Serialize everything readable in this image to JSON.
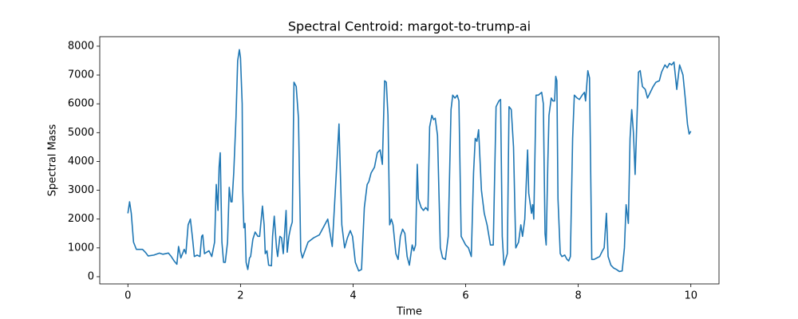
{
  "chart_data": {
    "type": "line",
    "title": "Spectral Centroid: margot-to-trump-ai",
    "xlabel": "Time",
    "ylabel": "Spectral Mass",
    "color": "#1f77b4",
    "xlim": [
      -0.5,
      10.5
    ],
    "ylim": [
      -250,
      8330
    ],
    "xticks": [
      0,
      2,
      4,
      6,
      8,
      10
    ],
    "yticks": [
      0,
      1000,
      2000,
      3000,
      4000,
      5000,
      6000,
      7000,
      8000
    ],
    "x": [
      0,
      0.03,
      0.06,
      0.1,
      0.15,
      0.26,
      0.31,
      0.36,
      0.46,
      0.56,
      0.62,
      0.72,
      0.77,
      0.82,
      0.87,
      0.9,
      0.94,
      1.0,
      1.03,
      1.07,
      1.11,
      1.15,
      1.18,
      1.23,
      1.28,
      1.31,
      1.33,
      1.36,
      1.44,
      1.49,
      1.54,
      1.57,
      1.6,
      1.62,
      1.64,
      1.67,
      1.7,
      1.73,
      1.77,
      1.8,
      1.83,
      1.85,
      1.88,
      1.92,
      1.95,
      1.98,
      2.0,
      2.03,
      2.04,
      2.06,
      2.08,
      2.1,
      2.13,
      2.16,
      2.18,
      2.22,
      2.26,
      2.31,
      2.34,
      2.39,
      2.42,
      2.44,
      2.47,
      2.5,
      2.55,
      2.57,
      2.6,
      2.64,
      2.66,
      2.7,
      2.73,
      2.76,
      2.81,
      2.83,
      2.86,
      2.89,
      2.92,
      2.95,
      2.99,
      3.03,
      3.07,
      3.1,
      3.2,
      3.3,
      3.4,
      3.55,
      3.63,
      3.75,
      3.8,
      3.85,
      3.9,
      3.95,
      3.99,
      4.04,
      4.1,
      4.15,
      4.2,
      4.25,
      4.28,
      4.32,
      4.38,
      4.43,
      4.48,
      4.52,
      4.56,
      4.59,
      4.62,
      4.65,
      4.68,
      4.71,
      4.76,
      4.8,
      4.84,
      4.88,
      4.92,
      4.96,
      5.0,
      5.05,
      5.08,
      5.11,
      5.14,
      5.16,
      5.21,
      5.25,
      5.29,
      5.33,
      5.36,
      5.4,
      5.43,
      5.46,
      5.5,
      5.55,
      5.59,
      5.64,
      5.69,
      5.74,
      5.77,
      5.81,
      5.85,
      5.88,
      5.92,
      5.96,
      6.0,
      6.05,
      6.1,
      6.14,
      6.17,
      6.2,
      6.23,
      6.28,
      6.33,
      6.38,
      6.44,
      6.49,
      6.54,
      6.59,
      6.62,
      6.65,
      6.68,
      6.71,
      6.74,
      6.77,
      6.81,
      6.85,
      6.89,
      6.94,
      6.98,
      7.01,
      7.05,
      7.1,
      7.12,
      7.17,
      7.19,
      7.21,
      7.25,
      7.29,
      7.35,
      7.38,
      7.41,
      7.43,
      7.46,
      7.48,
      7.52,
      7.55,
      7.58,
      7.6,
      7.62,
      7.64,
      7.68,
      7.71,
      7.76,
      7.8,
      7.83,
      7.86,
      7.9,
      7.93,
      7.98,
      8.02,
      8.07,
      8.11,
      8.13,
      8.17,
      8.2,
      8.24,
      8.28,
      8.33,
      8.38,
      8.43,
      8.46,
      8.5,
      8.53,
      8.58,
      8.63,
      8.68,
      8.73,
      8.78,
      8.82,
      8.85,
      8.89,
      8.92,
      8.95,
      8.98,
      9.01,
      9.07,
      9.1,
      9.14,
      9.19,
      9.23,
      9.28,
      9.33,
      9.38,
      9.44,
      9.48,
      9.54,
      9.58,
      9.62,
      9.66,
      9.7,
      9.75,
      9.8,
      9.86,
      9.9,
      9.94,
      9.97,
      10.0
    ],
    "values": [
      2200,
      2600,
      2200,
      1200,
      950,
      950,
      850,
      720,
      750,
      820,
      780,
      820,
      700,
      550,
      430,
      1050,
      650,
      950,
      800,
      1800,
      2000,
      1300,
      700,
      750,
      700,
      1400,
      1450,
      800,
      900,
      700,
      1200,
      3200,
      2300,
      3800,
      4300,
      1200,
      500,
      500,
      1200,
      3100,
      2600,
      2600,
      3600,
      5500,
      7500,
      7880,
      7600,
      6000,
      3000,
      1700,
      1850,
      500,
      250,
      650,
      700,
      1300,
      1550,
      1400,
      1400,
      2450,
      1800,
      800,
      900,
      400,
      380,
      1400,
      2100,
      1000,
      700,
      1400,
      1350,
      800,
      2300,
      850,
      1400,
      1700,
      1900,
      6750,
      6600,
      5500,
      900,
      650,
      1200,
      1350,
      1450,
      2000,
      1050,
      5300,
      1800,
      1000,
      1350,
      1600,
      1400,
      500,
      200,
      250,
      2400,
      3200,
      3300,
      3600,
      3800,
      4300,
      4400,
      3900,
      6800,
      6750,
      5600,
      1800,
      2000,
      1800,
      800,
      600,
      1400,
      1650,
      1500,
      700,
      400,
      1100,
      900,
      1100,
      3900,
      2700,
      2400,
      2300,
      2400,
      2300,
      5200,
      5600,
      5450,
      5500,
      4900,
      1000,
      650,
      600,
      1400,
      5800,
      6300,
      6200,
      6300,
      6100,
      1400,
      1250,
      1100,
      1000,
      700,
      3600,
      4800,
      4700,
      5100,
      3000,
      2200,
      1800,
      1100,
      1100,
      5900,
      6100,
      6150,
      1400,
      400,
      600,
      800,
      5900,
      5800,
      4500,
      1000,
      1200,
      1800,
      1400,
      2000,
      4400,
      2900,
      2200,
      2500,
      2000,
      6300,
      6300,
      6400,
      6000,
      1500,
      1100,
      4000,
      5600,
      6200,
      6100,
      6100,
      6950,
      6800,
      2700,
      800,
      700,
      750,
      600,
      550,
      700,
      4800,
      6300,
      6200,
      6150,
      6300,
      6400,
      6100,
      7150,
      6900,
      600,
      600,
      650,
      700,
      900,
      1000,
      2200,
      700,
      400,
      300,
      250,
      180,
      200,
      1000,
      2500,
      1850,
      4800,
      5800,
      5000,
      3550,
      7100,
      7150,
      6600,
      6500,
      6200,
      6400,
      6600,
      6750,
      6800,
      7100,
      7350,
      7250,
      7400,
      7350,
      7450,
      6500,
      7350,
      7000,
      6200,
      5300,
      4950,
      5050
    ]
  }
}
